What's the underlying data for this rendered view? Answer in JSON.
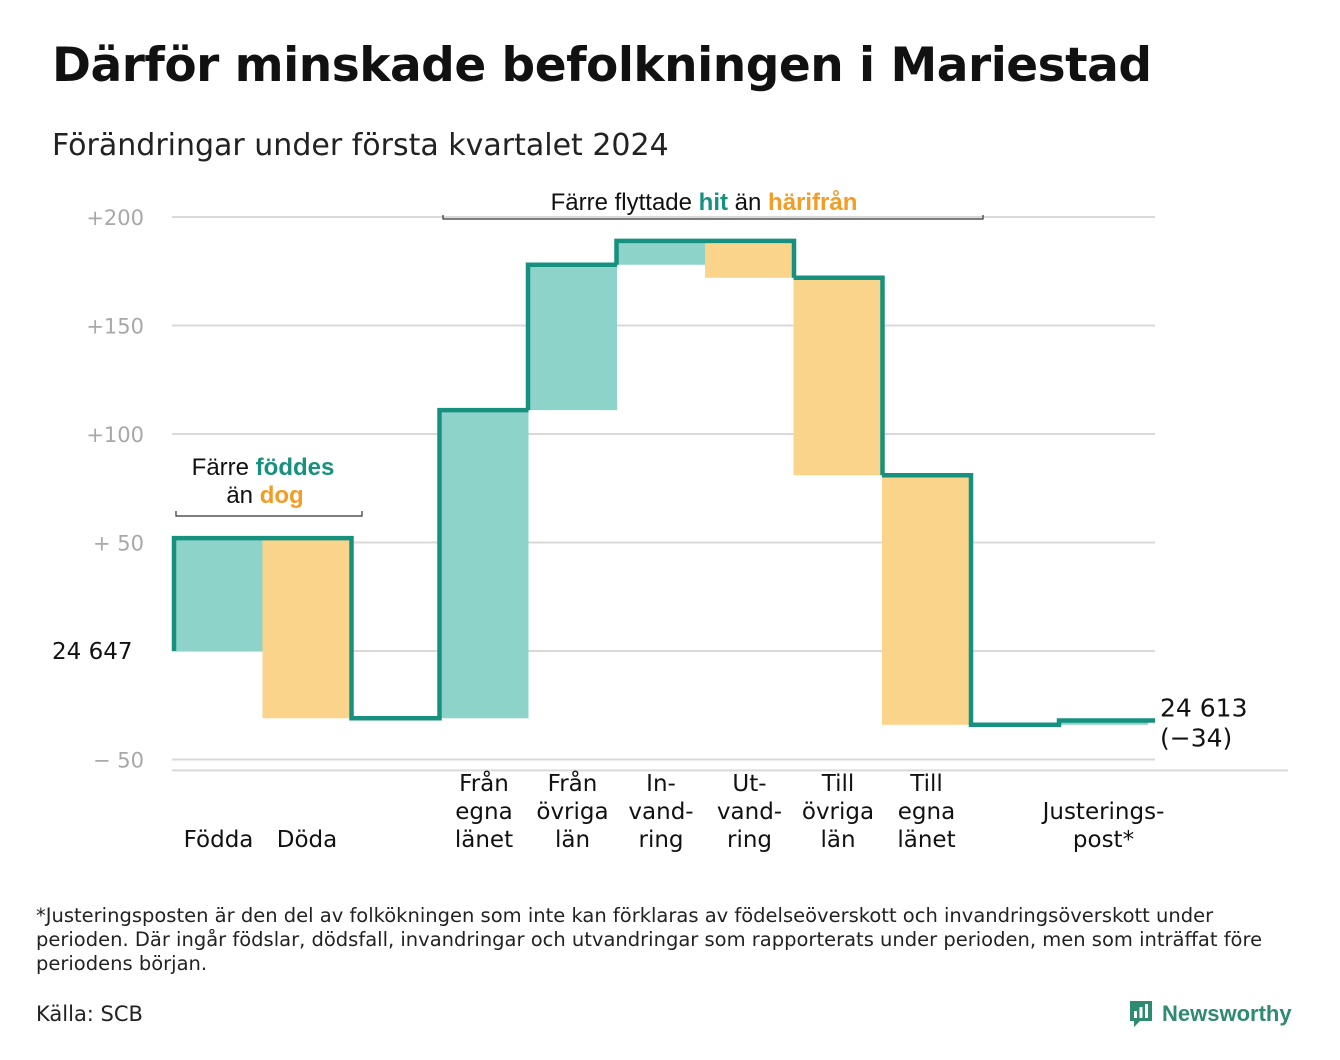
{
  "title": "Därför minskade befolkningen i Mariestad",
  "subtitle": "Förändringar under första kvartalet 2024",
  "footnote": "*Justeringsposten är den del av folkökningen som inte kan förklaras av födelseöverskott och invandringsöverskott under perioden. Där ingår födslar, dödsfall, invandringar och utvandringar som rapporterats under perioden, men som inträffat före periodens början.",
  "source": "Källa: SCB",
  "brand": "Newsworthy",
  "colors": {
    "inflow": "#8dd3ca",
    "outflow": "#f9d48a",
    "line": "#17917f",
    "orange_text": "#f39c26",
    "teal_text": "#17917f",
    "grid": "#d9d9d9"
  },
  "chart_data": {
    "type": "waterfall",
    "start_label": "24  647",
    "end_label": [
      "24 613",
      "(−34)"
    ],
    "y_ticks": [
      {
        "value": 200,
        "label": "+200"
      },
      {
        "value": 150,
        "label": "+150"
      },
      {
        "value": 100,
        "label": "+100"
      },
      {
        "value": 50,
        "label": "+  50"
      },
      {
        "value": 0,
        "label": ""
      },
      {
        "value": -50,
        "label": "−  50"
      }
    ],
    "ylim": [
      -55,
      205
    ],
    "grid": true,
    "steps": [
      {
        "name": "Födda",
        "label_lines": [
          "Födda"
        ],
        "value": 52,
        "kind": "in",
        "slot": 0
      },
      {
        "name": "Döda",
        "label_lines": [
          "Döda"
        ],
        "value": -83,
        "kind": "out",
        "slot": 1
      },
      {
        "name": "Från egna länet",
        "label_lines": [
          "Från",
          "egna",
          "länet"
        ],
        "value": 142,
        "kind": "in",
        "slot": 3
      },
      {
        "name": "Från övriga län",
        "label_lines": [
          "Från",
          "övriga",
          "län"
        ],
        "value": 67,
        "kind": "in",
        "slot": 4
      },
      {
        "name": "Invandring",
        "label_lines": [
          "In-",
          "vand-",
          "ring"
        ],
        "value": 11,
        "kind": "in",
        "slot": 5
      },
      {
        "name": "Utvandring",
        "label_lines": [
          "Ut-",
          "vand-",
          "ring"
        ],
        "value": -17,
        "kind": "out",
        "slot": 6
      },
      {
        "name": "Till övriga län",
        "label_lines": [
          "Till",
          "övriga",
          "län"
        ],
        "value": -91,
        "kind": "out",
        "slot": 7
      },
      {
        "name": "Till egna länet",
        "label_lines": [
          "Till",
          "egna",
          "länet"
        ],
        "value": -115,
        "kind": "out",
        "slot": 8
      },
      {
        "name": "Justeringspost*",
        "label_lines": [
          "Justerings-",
          "post*"
        ],
        "value": 2,
        "kind": "in",
        "slot": 10
      }
    ],
    "annotations": {
      "births": {
        "line1_prefix": "Färre ",
        "line1_highlight": "föddes",
        "line2_prefix": "än ",
        "line2_highlight": "dog"
      },
      "migration": {
        "prefix": "Färre flyttade ",
        "highlight1": "hit",
        "middle": " än ",
        "highlight2": "härifrån"
      }
    }
  }
}
